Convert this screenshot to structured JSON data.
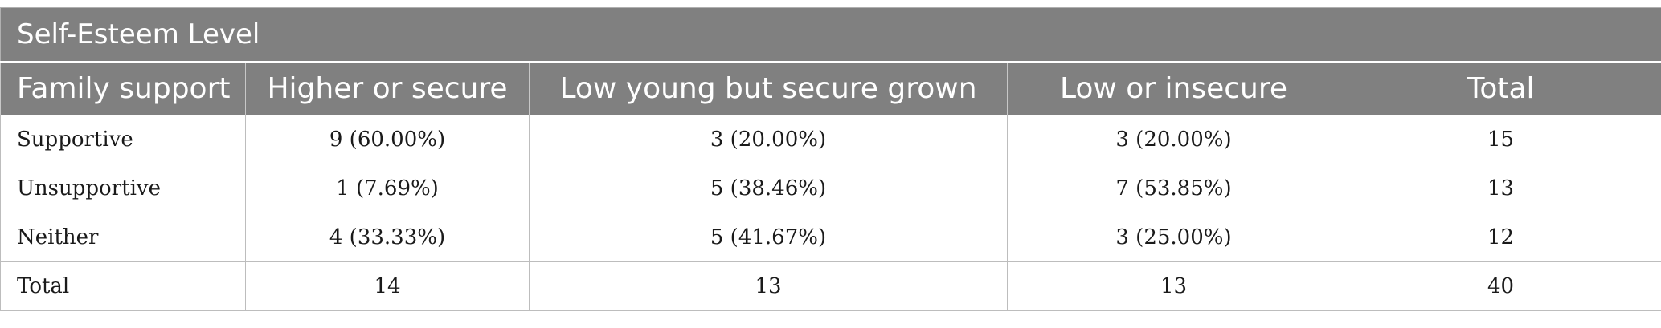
{
  "table": {
    "caption": "Self-Esteem Level",
    "columns": [
      "Family support",
      "Higher or secure",
      "Low young but secure grown",
      "Low or insecure",
      "Total"
    ],
    "rows": [
      [
        "Supportive",
        "9 (60.00%)",
        "3 (20.00%)",
        "3 (20.00%)",
        "15"
      ],
      [
        "Unsupportive",
        "1 (7.69%)",
        "5 (38.46%)",
        "7 (53.85%)",
        "13"
      ],
      [
        "Neither",
        "4 (33.33%)",
        "5 (41.67%)",
        "3 (25.00%)",
        "12"
      ],
      [
        "Total",
        "14",
        "13",
        "13",
        "40"
      ]
    ]
  }
}
